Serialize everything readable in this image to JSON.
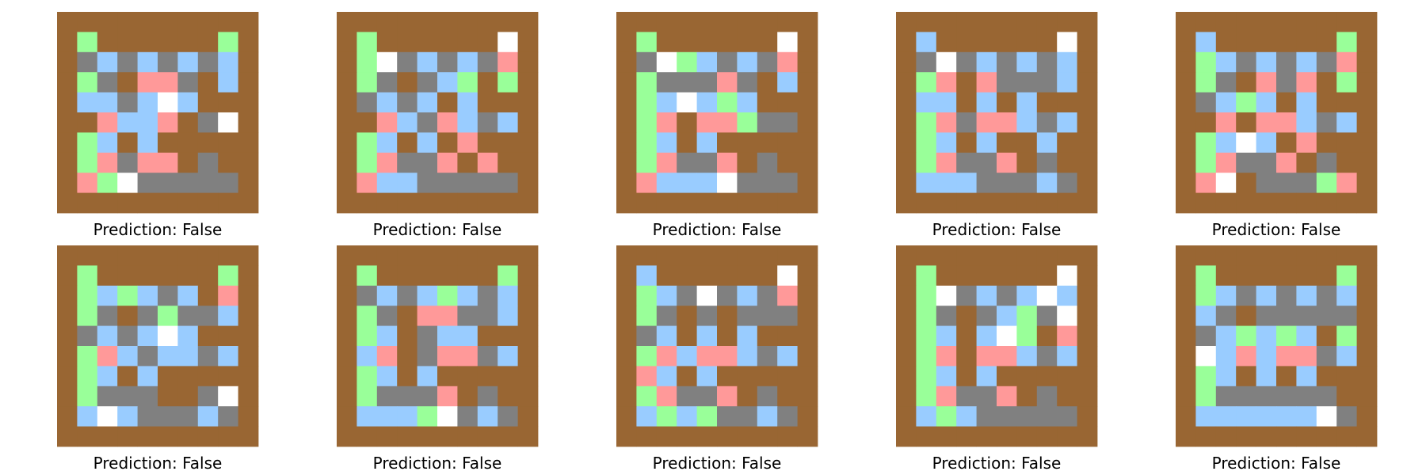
{
  "chart_data": {
    "type": "heatmap",
    "layout": {
      "rows": 2,
      "columns": 5
    },
    "legend": {
      "0": {
        "name": "wall",
        "color": "#996633"
      },
      "1": {
        "name": "floor",
        "color": "#808080"
      },
      "2": {
        "name": "empty",
        "color": "#99ccff"
      },
      "3": {
        "name": "green",
        "color": "#99ff99"
      },
      "4": {
        "name": "pink",
        "color": "#ff9999"
      },
      "5": {
        "name": "white",
        "color": "#ffffff"
      }
    },
    "panels": [
      {
        "caption": "Prediction: False",
        "grid": [
          [
            0,
            0,
            0,
            0,
            0,
            0,
            0,
            0,
            0,
            0
          ],
          [
            0,
            3,
            0,
            0,
            0,
            0,
            0,
            0,
            3,
            0
          ],
          [
            0,
            1,
            2,
            1,
            2,
            1,
            2,
            1,
            2,
            0
          ],
          [
            0,
            3,
            1,
            0,
            4,
            4,
            1,
            0,
            2,
            0
          ],
          [
            0,
            2,
            2,
            1,
            2,
            5,
            2,
            0,
            0,
            0
          ],
          [
            0,
            0,
            4,
            2,
            2,
            4,
            0,
            1,
            5,
            0
          ],
          [
            0,
            3,
            2,
            0,
            2,
            0,
            0,
            0,
            0,
            0
          ],
          [
            0,
            3,
            4,
            1,
            4,
            4,
            0,
            1,
            0,
            0
          ],
          [
            0,
            4,
            3,
            5,
            1,
            1,
            1,
            1,
            1,
            0
          ],
          [
            0,
            0,
            0,
            0,
            0,
            0,
            0,
            0,
            0,
            0
          ]
        ]
      },
      {
        "caption": "Prediction: False",
        "grid": [
          [
            0,
            0,
            0,
            0,
            0,
            0,
            0,
            0,
            0,
            0
          ],
          [
            0,
            3,
            0,
            0,
            0,
            0,
            0,
            0,
            5,
            0
          ],
          [
            0,
            3,
            5,
            1,
            2,
            1,
            2,
            1,
            4,
            0
          ],
          [
            0,
            3,
            1,
            0,
            1,
            2,
            3,
            0,
            3,
            0
          ],
          [
            0,
            1,
            2,
            1,
            2,
            0,
            2,
            0,
            0,
            0
          ],
          [
            0,
            0,
            4,
            2,
            1,
            4,
            2,
            1,
            2,
            0
          ],
          [
            0,
            3,
            2,
            0,
            2,
            0,
            4,
            0,
            0,
            0
          ],
          [
            0,
            3,
            4,
            1,
            1,
            4,
            0,
            4,
            0,
            0
          ],
          [
            0,
            4,
            2,
            2,
            1,
            1,
            1,
            1,
            1,
            0
          ],
          [
            0,
            0,
            0,
            0,
            0,
            0,
            0,
            0,
            0,
            0
          ]
        ]
      },
      {
        "caption": "Prediction: False",
        "grid": [
          [
            0,
            0,
            0,
            0,
            0,
            0,
            0,
            0,
            0,
            0
          ],
          [
            0,
            3,
            0,
            0,
            0,
            0,
            0,
            0,
            5,
            0
          ],
          [
            0,
            1,
            5,
            3,
            2,
            1,
            2,
            1,
            4,
            0
          ],
          [
            0,
            3,
            1,
            1,
            1,
            4,
            1,
            0,
            2,
            0
          ],
          [
            0,
            3,
            2,
            5,
            2,
            3,
            2,
            0,
            0,
            0
          ],
          [
            0,
            3,
            4,
            0,
            4,
            4,
            3,
            1,
            1,
            0
          ],
          [
            0,
            3,
            2,
            0,
            2,
            0,
            0,
            0,
            0,
            0
          ],
          [
            0,
            3,
            4,
            1,
            1,
            4,
            0,
            1,
            0,
            0
          ],
          [
            0,
            4,
            2,
            2,
            2,
            5,
            1,
            1,
            1,
            0
          ],
          [
            0,
            0,
            0,
            0,
            0,
            0,
            0,
            0,
            0,
            0
          ]
        ]
      },
      {
        "caption": "Prediction: False",
        "grid": [
          [
            0,
            0,
            0,
            0,
            0,
            0,
            0,
            0,
            0,
            0
          ],
          [
            0,
            2,
            0,
            0,
            0,
            0,
            0,
            0,
            5,
            0
          ],
          [
            0,
            1,
            5,
            1,
            2,
            1,
            2,
            1,
            2,
            0
          ],
          [
            0,
            3,
            4,
            0,
            4,
            1,
            1,
            1,
            2,
            0
          ],
          [
            0,
            2,
            2,
            0,
            2,
            0,
            2,
            0,
            0,
            0
          ],
          [
            0,
            3,
            4,
            1,
            4,
            4,
            2,
            1,
            2,
            0
          ],
          [
            0,
            3,
            2,
            0,
            2,
            0,
            0,
            2,
            0,
            0
          ],
          [
            0,
            3,
            4,
            1,
            1,
            4,
            0,
            1,
            0,
            0
          ],
          [
            0,
            2,
            2,
            2,
            1,
            1,
            1,
            2,
            1,
            0
          ],
          [
            0,
            0,
            0,
            0,
            0,
            0,
            0,
            0,
            0,
            0
          ]
        ]
      },
      {
        "caption": "Prediction: False",
        "grid": [
          [
            0,
            0,
            0,
            0,
            0,
            0,
            0,
            0,
            0,
            0
          ],
          [
            0,
            2,
            0,
            0,
            0,
            0,
            0,
            0,
            3,
            0
          ],
          [
            0,
            3,
            2,
            1,
            2,
            1,
            2,
            1,
            4,
            0
          ],
          [
            0,
            3,
            1,
            0,
            4,
            1,
            4,
            0,
            3,
            0
          ],
          [
            0,
            1,
            2,
            3,
            2,
            0,
            2,
            0,
            0,
            0
          ],
          [
            0,
            0,
            4,
            0,
            4,
            4,
            2,
            1,
            2,
            0
          ],
          [
            0,
            3,
            2,
            5,
            2,
            0,
            4,
            0,
            0,
            0
          ],
          [
            0,
            3,
            4,
            1,
            1,
            4,
            0,
            1,
            0,
            0
          ],
          [
            0,
            4,
            5,
            0,
            1,
            1,
            1,
            3,
            4,
            0
          ],
          [
            0,
            0,
            0,
            0,
            0,
            0,
            0,
            0,
            0,
            0
          ]
        ]
      },
      {
        "caption": "Prediction: False",
        "grid": [
          [
            0,
            0,
            0,
            0,
            0,
            0,
            0,
            0,
            0,
            0
          ],
          [
            0,
            3,
            0,
            0,
            0,
            0,
            0,
            0,
            3,
            0
          ],
          [
            0,
            3,
            2,
            3,
            2,
            1,
            2,
            0,
            4,
            0
          ],
          [
            0,
            3,
            1,
            0,
            1,
            3,
            1,
            1,
            2,
            0
          ],
          [
            0,
            1,
            2,
            1,
            2,
            5,
            2,
            0,
            0,
            0
          ],
          [
            0,
            3,
            4,
            2,
            1,
            2,
            2,
            1,
            2,
            0
          ],
          [
            0,
            3,
            2,
            0,
            2,
            0,
            0,
            0,
            0,
            0
          ],
          [
            0,
            3,
            1,
            1,
            1,
            0,
            0,
            1,
            5,
            0
          ],
          [
            0,
            2,
            5,
            2,
            1,
            1,
            1,
            2,
            1,
            0
          ],
          [
            0,
            0,
            0,
            0,
            0,
            0,
            0,
            0,
            0,
            0
          ]
        ]
      },
      {
        "caption": "Prediction: False",
        "grid": [
          [
            0,
            0,
            0,
            0,
            0,
            0,
            0,
            0,
            0,
            0
          ],
          [
            0,
            3,
            0,
            0,
            0,
            0,
            0,
            0,
            3,
            0
          ],
          [
            0,
            1,
            2,
            1,
            2,
            3,
            2,
            1,
            2,
            0
          ],
          [
            0,
            3,
            1,
            0,
            4,
            4,
            1,
            1,
            2,
            0
          ],
          [
            0,
            3,
            2,
            0,
            1,
            2,
            2,
            0,
            0,
            0
          ],
          [
            0,
            2,
            4,
            0,
            1,
            4,
            4,
            1,
            2,
            0
          ],
          [
            0,
            3,
            2,
            0,
            2,
            0,
            0,
            0,
            0,
            0
          ],
          [
            0,
            3,
            1,
            1,
            1,
            4,
            0,
            1,
            0,
            0
          ],
          [
            0,
            2,
            2,
            2,
            3,
            5,
            1,
            2,
            1,
            0
          ],
          [
            0,
            0,
            0,
            0,
            0,
            0,
            0,
            0,
            0,
            0
          ]
        ]
      },
      {
        "caption": "Prediction: False",
        "grid": [
          [
            0,
            0,
            0,
            0,
            0,
            0,
            0,
            0,
            0,
            0
          ],
          [
            0,
            2,
            0,
            0,
            0,
            0,
            0,
            0,
            5,
            0
          ],
          [
            0,
            3,
            2,
            1,
            5,
            1,
            2,
            1,
            4,
            0
          ],
          [
            0,
            3,
            1,
            0,
            1,
            0,
            1,
            1,
            1,
            0
          ],
          [
            0,
            1,
            2,
            0,
            2,
            0,
            2,
            0,
            0,
            0
          ],
          [
            0,
            3,
            4,
            2,
            4,
            4,
            2,
            1,
            2,
            0
          ],
          [
            0,
            4,
            2,
            0,
            2,
            0,
            0,
            0,
            0,
            0
          ],
          [
            0,
            3,
            4,
            1,
            1,
            4,
            0,
            1,
            0,
            0
          ],
          [
            0,
            2,
            3,
            2,
            3,
            1,
            1,
            2,
            1,
            0
          ],
          [
            0,
            0,
            0,
            0,
            0,
            0,
            0,
            0,
            0,
            0
          ]
        ]
      },
      {
        "caption": "Prediction: False",
        "grid": [
          [
            0,
            0,
            0,
            0,
            0,
            0,
            0,
            0,
            0,
            0
          ],
          [
            0,
            3,
            0,
            0,
            0,
            0,
            0,
            0,
            5,
            0
          ],
          [
            0,
            3,
            5,
            1,
            2,
            1,
            2,
            5,
            2,
            0
          ],
          [
            0,
            3,
            1,
            0,
            1,
            2,
            3,
            1,
            5,
            0
          ],
          [
            0,
            3,
            2,
            0,
            2,
            5,
            3,
            0,
            4,
            0
          ],
          [
            0,
            3,
            4,
            0,
            4,
            4,
            2,
            1,
            2,
            0
          ],
          [
            0,
            3,
            2,
            0,
            2,
            0,
            0,
            0,
            0,
            0
          ],
          [
            0,
            3,
            4,
            1,
            1,
            4,
            0,
            1,
            0,
            0
          ],
          [
            0,
            2,
            3,
            2,
            1,
            1,
            1,
            1,
            1,
            0
          ],
          [
            0,
            0,
            0,
            0,
            0,
            0,
            0,
            0,
            0,
            0
          ]
        ]
      },
      {
        "caption": "Prediction: False",
        "grid": [
          [
            0,
            0,
            0,
            0,
            0,
            0,
            0,
            0,
            0,
            0
          ],
          [
            0,
            3,
            0,
            0,
            0,
            0,
            0,
            0,
            3,
            0
          ],
          [
            0,
            3,
            2,
            1,
            2,
            1,
            2,
            1,
            2,
            0
          ],
          [
            0,
            2,
            1,
            0,
            1,
            1,
            1,
            1,
            1,
            0
          ],
          [
            0,
            1,
            2,
            3,
            2,
            3,
            2,
            0,
            3,
            0
          ],
          [
            0,
            5,
            2,
            4,
            2,
            4,
            4,
            1,
            2,
            0
          ],
          [
            0,
            3,
            2,
            0,
            2,
            0,
            2,
            0,
            0,
            0
          ],
          [
            0,
            3,
            1,
            1,
            1,
            1,
            1,
            1,
            0,
            0
          ],
          [
            0,
            2,
            2,
            2,
            2,
            2,
            2,
            5,
            1,
            0
          ],
          [
            0,
            0,
            0,
            0,
            0,
            0,
            0,
            0,
            0,
            0
          ]
        ]
      }
    ]
  }
}
